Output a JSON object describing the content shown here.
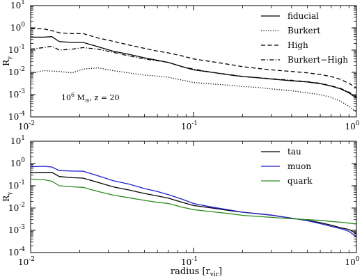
{
  "figure": {
    "xlabel": "radius  [r",
    "xlabel_sub": "vir",
    "xlabel_end": "]"
  },
  "chart_data": [
    {
      "type": "line",
      "xscale": "log",
      "yscale": "log",
      "xlim": [
        0.01,
        1
      ],
      "ylim": [
        0.0001,
        10
      ],
      "xtick_labels": [
        "10",
        "10",
        "10"
      ],
      "xtick_exponents": [
        "-2",
        "-1",
        "0"
      ],
      "ytick_labels": [
        "10",
        "10",
        "10",
        "10",
        "10",
        "10"
      ],
      "ytick_exponents": [
        "-4",
        "-3",
        "-2",
        "-1",
        "0",
        "1"
      ],
      "ylabel": "R",
      "ylabel_sub": "γ",
      "legend_position": "top-right",
      "annotation": {
        "base": "10",
        "exp": "6",
        "text": " M",
        "sub": "⊙",
        "tail": ", z = 20"
      },
      "series": [
        {
          "name": "fiducial",
          "style": "solid",
          "x": [
            0.01,
            0.012,
            0.0135,
            0.015,
            0.018,
            0.021,
            0.026,
            0.032,
            0.04,
            0.05,
            0.06,
            0.07,
            0.085,
            0.1,
            0.13,
            0.17,
            0.2,
            0.25,
            0.3,
            0.4,
            0.5,
            0.6,
            0.7,
            0.8,
            0.9,
            1.0
          ],
          "y": [
            0.38,
            0.38,
            0.4,
            0.24,
            0.22,
            0.22,
            0.14,
            0.09,
            0.065,
            0.045,
            0.035,
            0.028,
            0.018,
            0.013,
            0.01,
            0.0075,
            0.0065,
            0.0057,
            0.005,
            0.0042,
            0.0037,
            0.0031,
            0.0024,
            0.0018,
            0.0012,
            0.0007
          ]
        },
        {
          "name": "Burkert",
          "style": "dotted",
          "x": [
            0.01,
            0.012,
            0.015,
            0.018,
            0.021,
            0.026,
            0.032,
            0.04,
            0.05,
            0.06,
            0.07,
            0.085,
            0.1,
            0.13,
            0.17,
            0.2,
            0.25,
            0.3,
            0.4,
            0.5,
            0.6,
            0.7,
            0.8,
            0.9,
            1.0
          ],
          "y": [
            0.009,
            0.012,
            0.011,
            0.0095,
            0.014,
            0.016,
            0.012,
            0.0095,
            0.0075,
            0.0068,
            0.006,
            0.0045,
            0.0035,
            0.003,
            0.0026,
            0.0023,
            0.0021,
            0.0018,
            0.0015,
            0.0012,
            0.001,
            0.00075,
            0.0005,
            0.0003,
            0.00016
          ]
        },
        {
          "name": "High",
          "style": "dashed",
          "x": [
            0.01,
            0.012,
            0.0135,
            0.015,
            0.018,
            0.021,
            0.026,
            0.032,
            0.04,
            0.05,
            0.06,
            0.07,
            0.085,
            0.1,
            0.13,
            0.17,
            0.2,
            0.25,
            0.3,
            0.4,
            0.5,
            0.6,
            0.7,
            0.8,
            0.9,
            1.0
          ],
          "y": [
            0.95,
            0.9,
            0.75,
            0.6,
            0.55,
            0.55,
            0.35,
            0.25,
            0.17,
            0.12,
            0.09,
            0.075,
            0.055,
            0.04,
            0.03,
            0.022,
            0.018,
            0.015,
            0.013,
            0.011,
            0.0095,
            0.008,
            0.0065,
            0.0048,
            0.0032,
            0.002
          ]
        },
        {
          "name": "Burkert−High",
          "style": "dashdot",
          "x": [
            0.01,
            0.012,
            0.0135,
            0.015,
            0.018,
            0.021,
            0.026,
            0.032,
            0.04,
            0.05,
            0.06,
            0.07,
            0.085,
            0.1,
            0.13,
            0.17,
            0.2,
            0.25,
            0.3,
            0.4,
            0.5,
            0.6,
            0.7,
            0.8,
            0.9,
            1.0
          ],
          "y": [
            0.11,
            0.13,
            0.15,
            0.1,
            0.11,
            0.13,
            0.11,
            0.08,
            0.055,
            0.04,
            0.033,
            0.028,
            0.018,
            0.014,
            0.01,
            0.0078,
            0.0066,
            0.0058,
            0.0052,
            0.0044,
            0.0038,
            0.0032,
            0.0025,
            0.0019,
            0.0013,
            0.0008
          ]
        }
      ]
    },
    {
      "type": "line",
      "xscale": "log",
      "yscale": "log",
      "xlim": [
        0.01,
        1
      ],
      "ylim": [
        0.0001,
        10
      ],
      "xtick_labels": [
        "10",
        "10",
        "10"
      ],
      "xtick_exponents": [
        "-2",
        "-1",
        "0"
      ],
      "ytick_labels": [
        "10",
        "10",
        "10",
        "10",
        "10",
        "10"
      ],
      "ytick_exponents": [
        "-4",
        "-3",
        "-2",
        "-1",
        "0",
        "1"
      ],
      "ylabel": "R",
      "ylabel_sub": "γ",
      "legend_position": "top-right",
      "series": [
        {
          "name": "tau",
          "color": "#000000",
          "x": [
            0.01,
            0.012,
            0.0135,
            0.015,
            0.018,
            0.021,
            0.026,
            0.032,
            0.04,
            0.05,
            0.06,
            0.07,
            0.085,
            0.1,
            0.13,
            0.17,
            0.2,
            0.25,
            0.3,
            0.4,
            0.5,
            0.6,
            0.7,
            0.8,
            0.9,
            1.0
          ],
          "y": [
            0.38,
            0.4,
            0.4,
            0.26,
            0.23,
            0.22,
            0.14,
            0.09,
            0.065,
            0.045,
            0.035,
            0.028,
            0.018,
            0.013,
            0.01,
            0.0075,
            0.0065,
            0.0055,
            0.0048,
            0.0035,
            0.0028,
            0.0022,
            0.0017,
            0.0013,
            0.0011,
            0.0007
          ]
        },
        {
          "name": "muon",
          "color": "#1f1fcc",
          "x": [
            0.01,
            0.012,
            0.0135,
            0.015,
            0.018,
            0.021,
            0.026,
            0.032,
            0.04,
            0.05,
            0.06,
            0.07,
            0.085,
            0.1,
            0.13,
            0.17,
            0.2,
            0.25,
            0.3,
            0.4,
            0.5,
            0.6,
            0.7,
            0.8,
            0.9,
            1.0
          ],
          "y": [
            0.72,
            0.75,
            0.7,
            0.48,
            0.46,
            0.45,
            0.28,
            0.17,
            0.12,
            0.075,
            0.055,
            0.04,
            0.025,
            0.016,
            0.011,
            0.008,
            0.0065,
            0.0056,
            0.0048,
            0.0035,
            0.0027,
            0.002,
            0.0015,
            0.0012,
            0.0009,
            0.0005
          ]
        },
        {
          "name": "quark",
          "color": "#2a8c1e",
          "x": [
            0.01,
            0.012,
            0.0135,
            0.015,
            0.018,
            0.021,
            0.026,
            0.032,
            0.04,
            0.05,
            0.06,
            0.07,
            0.085,
            0.1,
            0.13,
            0.17,
            0.2,
            0.25,
            0.3,
            0.4,
            0.5,
            0.6,
            0.7,
            0.8,
            0.9,
            1.0
          ],
          "y": [
            0.2,
            0.19,
            0.16,
            0.1,
            0.09,
            0.085,
            0.055,
            0.038,
            0.029,
            0.022,
            0.018,
            0.016,
            0.011,
            0.0085,
            0.0068,
            0.0055,
            0.0047,
            0.0042,
            0.0038,
            0.0033,
            0.003,
            0.0028,
            0.0025,
            0.0023,
            0.0021,
            0.0019
          ]
        }
      ]
    }
  ]
}
